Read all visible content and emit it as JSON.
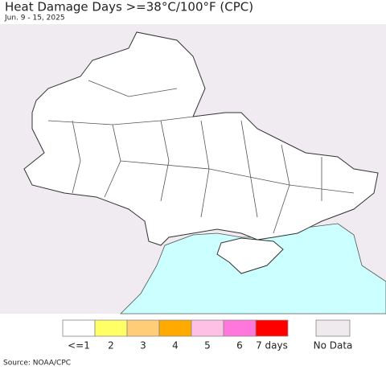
{
  "header": {
    "title": "Heat Damage Days >=38°C/100°F (CPC)",
    "subtitle": "Jun. 9 - 15, 2025"
  },
  "legend": {
    "items": [
      {
        "label": "<=1",
        "color": "#ffffff"
      },
      {
        "label": "2",
        "color": "#ffff66"
      },
      {
        "label": "3",
        "color": "#ffcc77"
      },
      {
        "label": "4",
        "color": "#ffaa00"
      },
      {
        "label": "5",
        "color": "#ffc0e6"
      },
      {
        "label": "6",
        "color": "#ff77dd"
      },
      {
        "label": "7 days",
        "color": "#ff0000"
      }
    ],
    "no_data": {
      "label": "No Data",
      "color": "#eeeaee"
    }
  },
  "footer": {
    "source": "Source: NOAA/CPC"
  }
}
